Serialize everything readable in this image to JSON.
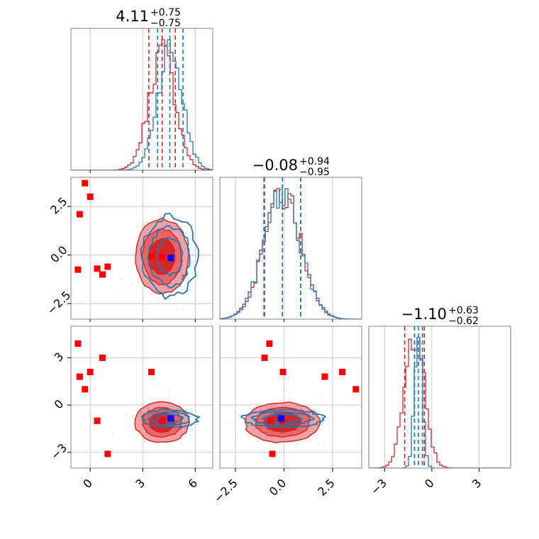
{
  "chart_data": {
    "type": "corner",
    "params": [
      "p0",
      "p1",
      "p2"
    ],
    "titles": [
      {
        "value": "4.11",
        "plus": "+0.75",
        "minus": "−0.75"
      },
      {
        "value": "−0.08",
        "plus": "+0.94",
        "minus": "−0.95"
      },
      {
        "value": "−1.10",
        "plus": "+0.63",
        "minus": "−0.62"
      }
    ],
    "ranges": [
      [
        -1.1,
        7.0
      ],
      [
        -3.3,
        4.0
      ],
      [
        -4.0,
        5.0
      ]
    ],
    "ticks": [
      {
        "values": [
          0,
          3,
          6
        ],
        "labels": [
          "0",
          "3",
          "6"
        ]
      },
      {
        "values": [
          -2.5,
          0.0,
          2.5
        ],
        "labels": [
          "−2.5",
          "0.0",
          "2.5"
        ]
      },
      {
        "values": [
          -3,
          0,
          3
        ],
        "labels": [
          "−3",
          "0",
          "3"
        ]
      }
    ],
    "grid": true,
    "colors": {
      "red": "#d62728",
      "red_light": "#f1a1a3",
      "blue": "#1f77b4",
      "marker_red": "#ff0000",
      "marker_blue": "#0000ff"
    },
    "red_quantiles": [
      [
        3.35,
        4.11,
        4.86
      ],
      [
        -1.03,
        -0.08,
        0.86
      ],
      [
        -1.72,
        -1.1,
        -0.48
      ]
    ],
    "blue_quantiles": [
      [
        3.85,
        4.55,
        5.3
      ],
      [
        -1.0,
        -0.08,
        0.86
      ],
      [
        -1.1,
        -0.85,
        -0.6
      ]
    ],
    "red_centers": [
      4.11,
      -0.08,
      -1.1
    ],
    "red_sigmas": [
      0.75,
      0.94,
      0.62
    ],
    "blue_centers": [
      4.55,
      -0.08,
      -0.85
    ],
    "blue_sigmas": [
      0.72,
      0.94,
      0.25
    ],
    "truth": [
      4.6,
      -0.15,
      -0.85
    ],
    "red_points": [
      [
        -0.6,
        2.1,
        1.8
      ],
      [
        -0.3,
        3.7,
        1.0
      ],
      [
        0.0,
        3.0,
        2.1
      ],
      [
        0.4,
        -0.7,
        -1.0
      ],
      [
        0.7,
        -1.0,
        3.0
      ],
      [
        1.0,
        -0.6,
        -3.1
      ],
      [
        3.5,
        -0.05,
        2.1
      ],
      [
        4.1,
        -0.1,
        -1.0
      ],
      [
        -0.7,
        -0.75,
        3.9
      ]
    ]
  }
}
